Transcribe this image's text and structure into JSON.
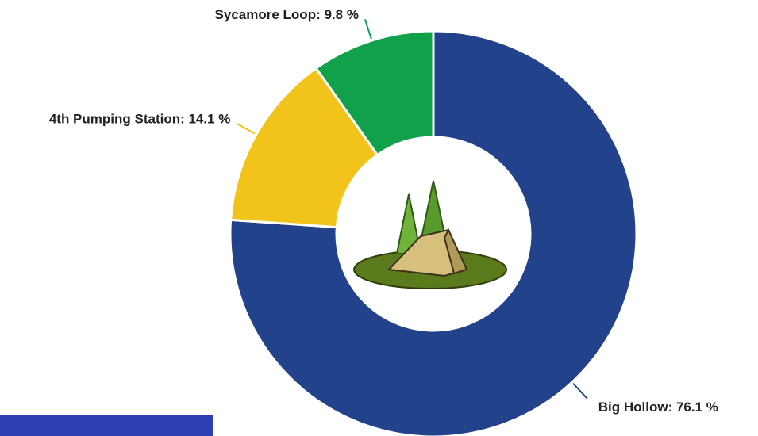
{
  "chart_data": {
    "type": "donut",
    "labels": [
      "Big Hollow: 76.1 %",
      "4th Pumping Station: 14.1 %",
      "Sycamore Loop: 9.8 %"
    ],
    "values": [
      76.1,
      14.1,
      9.8
    ],
    "colors": [
      "#22438b",
      "#f2c31b",
      "#11a14a"
    ]
  }
}
